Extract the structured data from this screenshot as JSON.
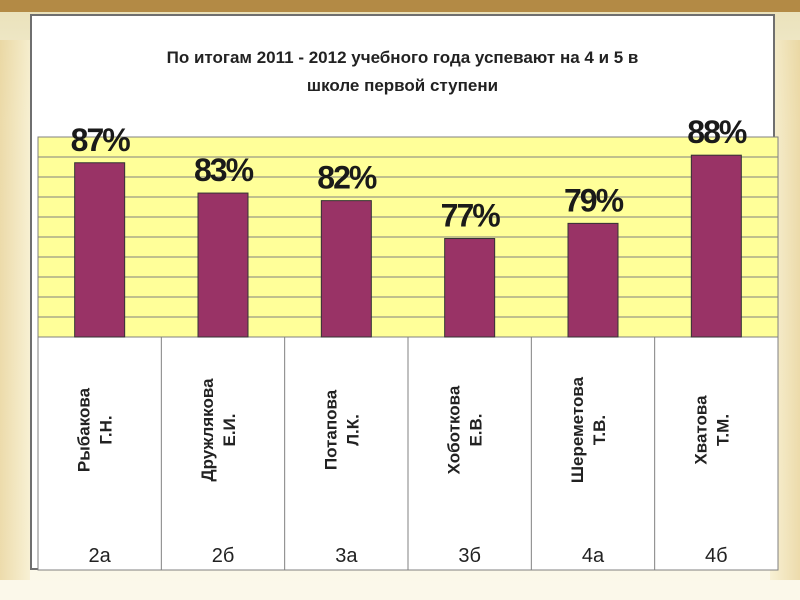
{
  "chart_data": {
    "type": "bar",
    "title_lines": [
      "По итогам 2011 - 2012 учебного года успевают на 4 и 5 в",
      "школе первой ступени"
    ],
    "categories": [
      {
        "name_lines": [
          "Рыбакова",
          "Г.Н."
        ],
        "class": "2а"
      },
      {
        "name_lines": [
          "Дружлякова",
          "Е.И."
        ],
        "class": "2б"
      },
      {
        "name_lines": [
          "Потапова",
          "Л.К."
        ],
        "class": "3а"
      },
      {
        "name_lines": [
          "Хоботкова",
          "Е.В."
        ],
        "class": "3б"
      },
      {
        "name_lines": [
          "Шереметова",
          "Т.В."
        ],
        "class": "4а"
      },
      {
        "name_lines": [
          "Хватова",
          "Т.М."
        ],
        "class": "4б"
      }
    ],
    "values": [
      87,
      83,
      82,
      77,
      79,
      88
    ],
    "data_labels": [
      "87%",
      "83%",
      "82%",
      "77%",
      "79%",
      "88%"
    ],
    "grid": true,
    "colors": {
      "bar": "#993366",
      "plot_background": "#ffff99",
      "grid": "#808080"
    }
  }
}
